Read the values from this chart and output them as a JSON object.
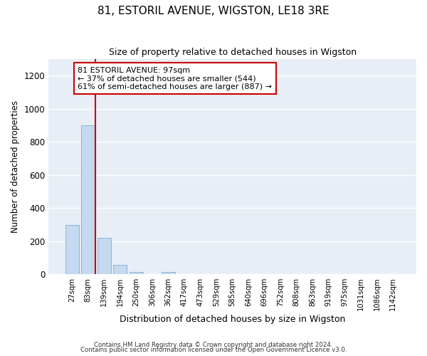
{
  "title": "81, ESTORIL AVENUE, WIGSTON, LE18 3RE",
  "subtitle": "Size of property relative to detached houses in Wigston",
  "xlabel": "Distribution of detached houses by size in Wigston",
  "ylabel": "Number of detached properties",
  "bar_color": "#c5d9f0",
  "bar_edge_color": "#7aafd4",
  "bg_color": "#e8eef5",
  "grid_color": "#ffffff",
  "categories": [
    "27sqm",
    "83sqm",
    "139sqm",
    "194sqm",
    "250sqm",
    "306sqm",
    "362sqm",
    "417sqm",
    "473sqm",
    "529sqm",
    "585sqm",
    "640sqm",
    "696sqm",
    "752sqm",
    "808sqm",
    "863sqm",
    "919sqm",
    "975sqm",
    "1031sqm",
    "1086sqm",
    "1142sqm"
  ],
  "values": [
    295,
    900,
    220,
    57,
    12,
    0,
    12,
    0,
    0,
    0,
    0,
    0,
    0,
    0,
    0,
    0,
    0,
    0,
    0,
    0,
    0
  ],
  "ylim": [
    0,
    1300
  ],
  "yticks": [
    0,
    200,
    400,
    600,
    800,
    1000,
    1200
  ],
  "annotation_line1": "81 ESTORIL AVENUE: 97sqm",
  "annotation_line2": "← 37% of detached houses are smaller (544)",
  "annotation_line3": "61% of semi-detached houses are larger (887) →",
  "annotation_box_color": "#cc0000",
  "red_line_x": 1.45,
  "footer1": "Contains HM Land Registry data © Crown copyright and database right 2024.",
  "footer2": "Contains public sector information licensed under the Open Government Licence v3.0."
}
